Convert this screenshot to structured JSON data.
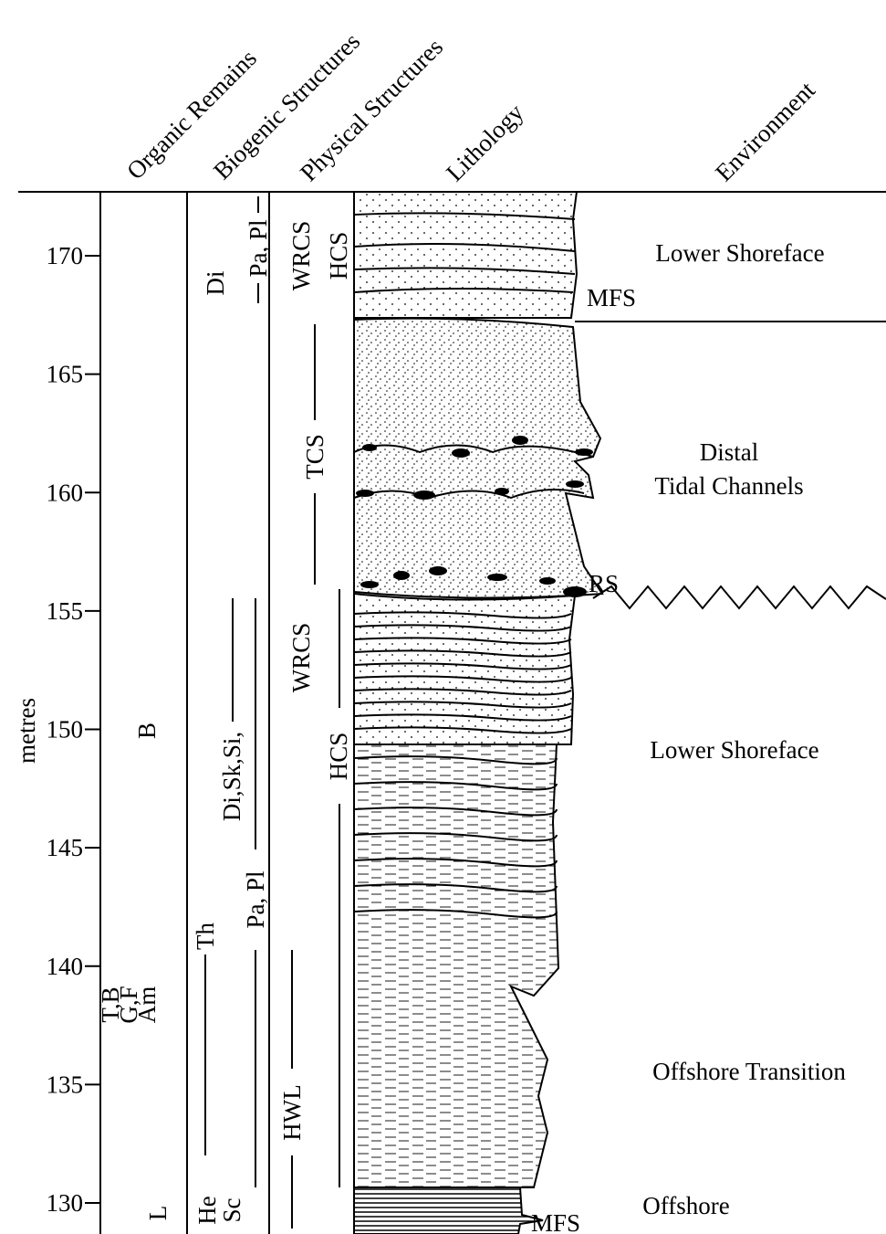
{
  "headers": [
    "Organic Remains",
    "Biogenic Structures",
    "Physical Structures",
    "Lithology",
    "Environment"
  ],
  "depth_axis": {
    "label": "metres",
    "ticks": [
      130,
      135,
      140,
      145,
      150,
      155,
      160,
      165,
      170
    ]
  },
  "organic_remains": [
    "B",
    "T,B",
    "G,F",
    "Am",
    "L"
  ],
  "biogenic_structures": [
    "Di",
    "Pa, Pl",
    "Di,Sk,Si,",
    "Th",
    "Pa, Pl",
    "He",
    "Sc"
  ],
  "physical_structures": [
    "WRCS",
    "HCS",
    "TCS",
    "WRCS",
    "HCS",
    "HWL"
  ],
  "environment": [
    "Lower Shoreface",
    "MFS",
    "Distal",
    "Tidal Channels",
    "RS",
    "Lower Shoreface",
    "Offshore Transition",
    "Offshore",
    "MFS"
  ]
}
